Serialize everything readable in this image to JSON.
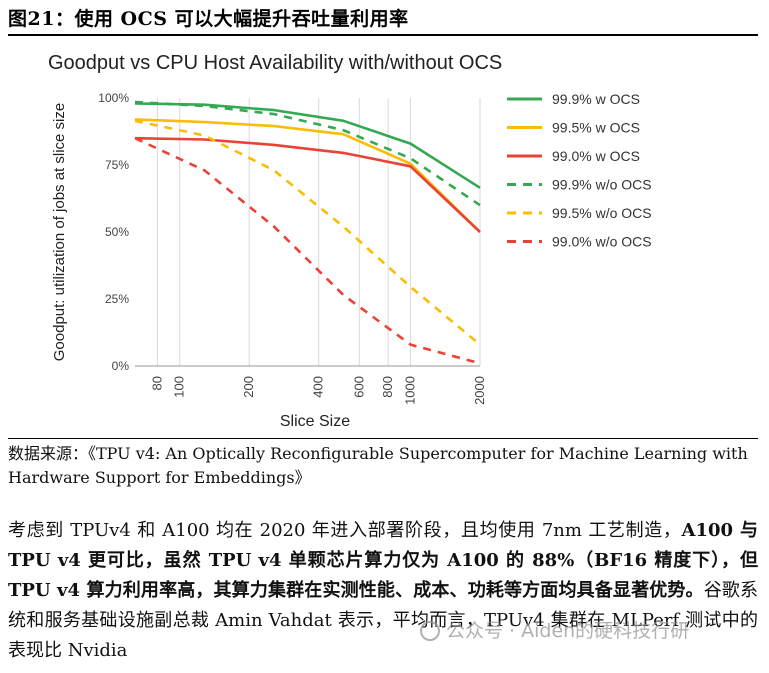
{
  "figure": {
    "title": "图21：使用 OCS 可以大幅提升吞吐量利用率"
  },
  "chart_data": {
    "type": "line",
    "title": "Goodput vs CPU Host Availability with/without OCS",
    "xlabel": "Slice Size",
    "ylabel": "Goodput: utilization of jobs at slice size",
    "x_scale": "log",
    "xlim": [
      64,
      2000
    ],
    "ylim": [
      0,
      100
    ],
    "x_ticks": [
      80,
      100,
      200,
      400,
      600,
      800,
      1000,
      2000
    ],
    "y_ticks": [
      0,
      25,
      50,
      75,
      100
    ],
    "y_tick_labels": [
      "0%",
      "25%",
      "50%",
      "75%",
      "100%"
    ],
    "grid": "vertical",
    "legend_position": "right",
    "series": [
      {
        "name": "99.9% w OCS",
        "color": "#34a853",
        "dashed": false,
        "x": [
          64,
          128,
          256,
          512,
          1000,
          2000
        ],
        "values": [
          98,
          97.5,
          95.5,
          91.5,
          83,
          66.5
        ]
      },
      {
        "name": "99.5% w OCS",
        "color": "#fbbc04",
        "dashed": false,
        "x": [
          64,
          128,
          256,
          512,
          1000,
          2000
        ],
        "values": [
          92,
          91,
          89.5,
          86.5,
          75.5,
          50
        ]
      },
      {
        "name": "99.0% w OCS",
        "color": "#ea4335",
        "dashed": false,
        "x": [
          64,
          128,
          256,
          512,
          1000,
          2000
        ],
        "values": [
          85,
          84.5,
          82.5,
          79.5,
          74.5,
          50
        ]
      },
      {
        "name": "99.9% w/o OCS",
        "color": "#34a853",
        "dashed": true,
        "x": [
          64,
          128,
          256,
          512,
          1000,
          2000
        ],
        "values": [
          98.5,
          97,
          94,
          88,
          77.5,
          60
        ]
      },
      {
        "name": "99.5% w/o OCS",
        "color": "#fbbc04",
        "dashed": true,
        "x": [
          64,
          128,
          256,
          512,
          1000,
          2000
        ],
        "values": [
          91.5,
          86,
          73,
          52,
          29.5,
          8
        ]
      },
      {
        "name": "99.0% w/o OCS",
        "color": "#ea4335",
        "dashed": true,
        "x": [
          64,
          128,
          256,
          512,
          1000,
          2000
        ],
        "values": [
          85,
          73,
          52,
          26.5,
          8,
          1
        ]
      }
    ]
  },
  "source": "数据来源：《TPU v4: An Optically Reconfigurable Supercomputer for Machine Learning with Hardware Support for Embeddings》",
  "body": {
    "p1": "考虑到 TPUv4 和 A100 均在 2020 年进入部署阶段，且均使用 7nm 工艺制造，",
    "bold": "A100 与 TPU v4 更可比，虽然 TPU v4 单颗芯片算力仅为 A100 的 88%（BF16 精度下），但 TPU v4 算力利用率高，其算力集群在实测性能、成本、功耗等方面均具备显著优势。",
    "p2": "谷歌系统和服务基础设施副总裁 Amin Vahdat 表示，平均而言，TPUv4 集群在 MLPerf 测试中的表现比 Nvidia"
  },
  "watermark": "公众号 · Aiden的硬科技行研"
}
